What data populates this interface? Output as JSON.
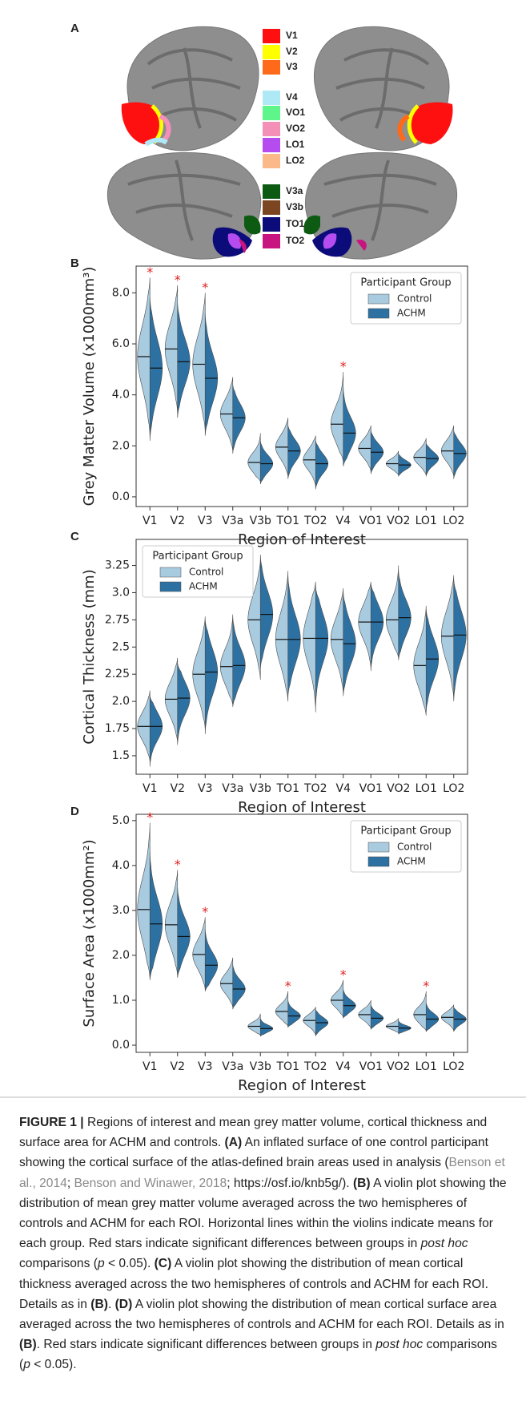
{
  "panel_a": {
    "panel_label": "A",
    "legend": [
      {
        "label": "V1",
        "color": "#ff1010"
      },
      {
        "label": "V2",
        "color": "#ffff00"
      },
      {
        "label": "V3",
        "color": "#ff6a1a"
      },
      {
        "label": "V4",
        "color": "#aee9f5"
      },
      {
        "label": "VO1",
        "color": "#5ef58a"
      },
      {
        "label": "VO2",
        "color": "#f48fb8"
      },
      {
        "label": "LO1",
        "color": "#b44cf0"
      },
      {
        "label": "LO2",
        "color": "#fbb98a"
      },
      {
        "label": "V3a",
        "color": "#0d5a13"
      },
      {
        "label": "V3b",
        "color": "#7a4520"
      },
      {
        "label": "TO1",
        "color": "#0b0b7a"
      },
      {
        "label": "TO2",
        "color": "#c81480"
      }
    ]
  },
  "chart_data": [
    {
      "type": "violin",
      "panel_label": "B",
      "xlabel": "Region of Interest",
      "ylabel": "Grey Matter Volume (x1000mm³)",
      "categories": [
        "V1",
        "V2",
        "V3",
        "V3a",
        "V3b",
        "TO1",
        "TO2",
        "V4",
        "VO1",
        "VO2",
        "LO1",
        "LO2"
      ],
      "ylim": [
        -0.38,
        9.05
      ],
      "yticks": [
        {
          "value": 0,
          "label": "0.0"
        },
        {
          "value": 2,
          "label": "2.0"
        },
        {
          "value": 4,
          "label": "4.0"
        },
        {
          "value": 6,
          "label": "6.0"
        },
        {
          "value": 8,
          "label": "8.0"
        }
      ],
      "legend_title": "Participant Group",
      "legend": "upper right",
      "series": [
        {
          "name": "Control",
          "color": "#a9cbe0",
          "values": [
            5.5,
            5.8,
            5.2,
            3.25,
            1.35,
            1.95,
            1.45,
            2.85,
            1.9,
            1.3,
            1.55,
            1.8
          ],
          "low": [
            2.4,
            3.3,
            2.6,
            1.8,
            0.6,
            0.8,
            0.4,
            1.4,
            1.0,
            0.85,
            0.85,
            0.8
          ],
          "high": [
            8.6,
            8.3,
            8.0,
            4.7,
            2.5,
            3.1,
            2.4,
            4.9,
            2.8,
            1.8,
            2.3,
            2.8
          ]
        },
        {
          "name": "ACHM",
          "color": "#2c71a2",
          "values": [
            5.05,
            5.3,
            4.65,
            3.1,
            1.3,
            1.8,
            1.3,
            2.5,
            1.75,
            1.25,
            1.5,
            1.7
          ],
          "low": [
            2.2,
            3.1,
            2.4,
            1.7,
            0.5,
            0.7,
            0.3,
            1.2,
            0.9,
            0.8,
            0.8,
            0.7
          ],
          "high": [
            7.8,
            7.6,
            7.2,
            4.4,
            2.2,
            2.8,
            2.2,
            4.3,
            2.6,
            1.7,
            2.1,
            2.6
          ]
        }
      ],
      "annotations": [
        {
          "x": "V1",
          "text": "*"
        },
        {
          "x": "V2",
          "text": "*"
        },
        {
          "x": "V3",
          "text": "*"
        },
        {
          "x": "V4",
          "text": "*"
        }
      ]
    },
    {
      "type": "violin",
      "panel_label": "C",
      "xlabel": "Region of Interest",
      "ylabel": "Cortical Thickness (mm)",
      "categories": [
        "V1",
        "V2",
        "V3",
        "V3a",
        "V3b",
        "TO1",
        "TO2",
        "V4",
        "VO1",
        "VO2",
        "LO1",
        "LO2"
      ],
      "ylim": [
        1.33,
        3.49
      ],
      "yticks": [
        1.5,
        1.75,
        {
          "value": 2,
          "label": "2.0"
        },
        2.25,
        2.5,
        2.75,
        {
          "value": 3,
          "label": "3.0"
        },
        3.25
      ],
      "legend_title": "Participant Group",
      "legend": "upper left",
      "series": [
        {
          "name": "Control",
          "color": "#a9cbe0",
          "values": [
            1.77,
            2.02,
            2.25,
            2.32,
            2.75,
            2.57,
            2.58,
            2.57,
            2.73,
            2.75,
            2.33,
            2.6
          ],
          "low": [
            1.45,
            1.62,
            1.75,
            1.97,
            2.2,
            2.0,
            1.9,
            2.08,
            2.3,
            2.4,
            1.87,
            2.02
          ],
          "high": [
            2.1,
            2.4,
            2.78,
            2.8,
            3.3,
            3.2,
            3.1,
            3.04,
            3.1,
            3.25,
            2.88,
            3.16
          ]
        },
        {
          "name": "ACHM",
          "color": "#2c71a2",
          "values": [
            1.77,
            2.03,
            2.27,
            2.33,
            2.8,
            2.57,
            2.58,
            2.53,
            2.73,
            2.77,
            2.39,
            2.61
          ],
          "low": [
            1.4,
            1.6,
            1.7,
            1.95,
            2.3,
            2.05,
            1.95,
            2.05,
            2.28,
            2.38,
            1.9,
            2.0
          ],
          "high": [
            2.05,
            2.35,
            2.75,
            2.78,
            3.35,
            3.15,
            3.05,
            3.0,
            3.08,
            3.2,
            2.85,
            3.12
          ]
        }
      ],
      "annotations": []
    },
    {
      "type": "violin",
      "panel_label": "D",
      "xlabel": "Region of Interest",
      "ylabel": "Surface Area (x1000mm²)",
      "categories": [
        "V1",
        "V2",
        "V3",
        "V3a",
        "V3b",
        "TO1",
        "TO2",
        "V4",
        "VO1",
        "VO2",
        "LO1",
        "LO2"
      ],
      "ylim": [
        -0.16,
        5.14
      ],
      "yticks": [
        {
          "value": 0,
          "label": "0.0"
        },
        {
          "value": 1,
          "label": "1.0"
        },
        {
          "value": 2,
          "label": "2.0"
        },
        {
          "value": 3,
          "label": "3.0"
        },
        {
          "value": 4,
          "label": "4.0"
        },
        {
          "value": 5,
          "label": "5.0"
        }
      ],
      "legend_title": "Participant Group",
      "legend": "upper right",
      "series": [
        {
          "name": "Control",
          "color": "#a9cbe0",
          "values": [
            3.02,
            2.68,
            2.02,
            1.37,
            0.42,
            0.75,
            0.55,
            1.0,
            0.68,
            0.42,
            0.68,
            0.62
          ],
          "low": [
            1.5,
            1.55,
            1.25,
            0.85,
            0.22,
            0.42,
            0.22,
            0.62,
            0.38,
            0.27,
            0.32,
            0.32
          ],
          "high": [
            4.95,
            3.9,
            2.85,
            1.95,
            0.7,
            1.2,
            0.85,
            1.45,
            1.0,
            0.6,
            1.2,
            0.9
          ]
        },
        {
          "name": "ACHM",
          "color": "#2c71a2",
          "values": [
            2.7,
            2.42,
            1.78,
            1.25,
            0.37,
            0.65,
            0.5,
            0.88,
            0.6,
            0.38,
            0.58,
            0.58
          ],
          "low": [
            1.45,
            1.5,
            1.2,
            0.8,
            0.2,
            0.4,
            0.2,
            0.6,
            0.35,
            0.25,
            0.3,
            0.3
          ],
          "high": [
            4.3,
            3.5,
            2.6,
            1.8,
            0.6,
            1.0,
            0.8,
            1.25,
            0.9,
            0.55,
            0.95,
            0.85
          ]
        }
      ],
      "annotations": [
        {
          "x": "V1",
          "text": "*"
        },
        {
          "x": "V2",
          "text": "*"
        },
        {
          "x": "V3",
          "text": "*"
        },
        {
          "x": "TO1",
          "text": "*"
        },
        {
          "x": "V4",
          "text": "*"
        },
        {
          "x": "LO1",
          "text": "*"
        }
      ]
    }
  ],
  "caption": [
    {
      "text": "FIGURE 1 |",
      "style": "bold"
    },
    {
      "text": " Regions of interest and mean grey matter volume, cortical thickness and surface area for ACHM and controls. ",
      "style": "normal"
    },
    {
      "text": "(A)",
      "style": "bold"
    },
    {
      "text": " An inflated surface of one control participant showing the cortical surface of the atlas-defined brain areas used in analysis (",
      "style": "normal"
    },
    {
      "text": "Benson et al., 2014",
      "style": "link"
    },
    {
      "text": "; ",
      "style": "normal"
    },
    {
      "text": "Benson and Winawer, 2018",
      "style": "link"
    },
    {
      "text": "; https://osf.io/knb5g/). ",
      "style": "normal"
    },
    {
      "text": "(B)",
      "style": "bold"
    },
    {
      "text": " A violin plot showing the distribution of mean grey matter volume averaged across the two hemispheres of controls and ACHM for each ROI. Horizontal lines within the violins indicate means for each group. Red stars indicate significant differences between groups in ",
      "style": "normal"
    },
    {
      "text": "post hoc",
      "style": "italic"
    },
    {
      "text": " comparisons (",
      "style": "normal"
    },
    {
      "text": "p",
      "style": "italic"
    },
    {
      "text": " < 0.05). ",
      "style": "normal"
    },
    {
      "text": "(C)",
      "style": "bold"
    },
    {
      "text": " A violin plot showing the distribution of mean cortical thickness averaged across the two hemispheres of controls and ACHM for each ROI. Details as in ",
      "style": "normal"
    },
    {
      "text": "(B)",
      "style": "bold"
    },
    {
      "text": ". ",
      "style": "normal"
    },
    {
      "text": "(D)",
      "style": "bold"
    },
    {
      "text": " A violin plot showing the distribution of mean cortical surface area averaged across the two hemispheres of controls and ACHM for each ROI. Details as in ",
      "style": "normal"
    },
    {
      "text": "(B)",
      "style": "bold"
    },
    {
      "text": ". Red stars indicate significant differences between groups in ",
      "style": "normal"
    },
    {
      "text": "post hoc",
      "style": "italic"
    },
    {
      "text": " comparisons (",
      "style": "normal"
    },
    {
      "text": "p",
      "style": "italic"
    },
    {
      "text": " < 0.05).",
      "style": "normal"
    }
  ]
}
